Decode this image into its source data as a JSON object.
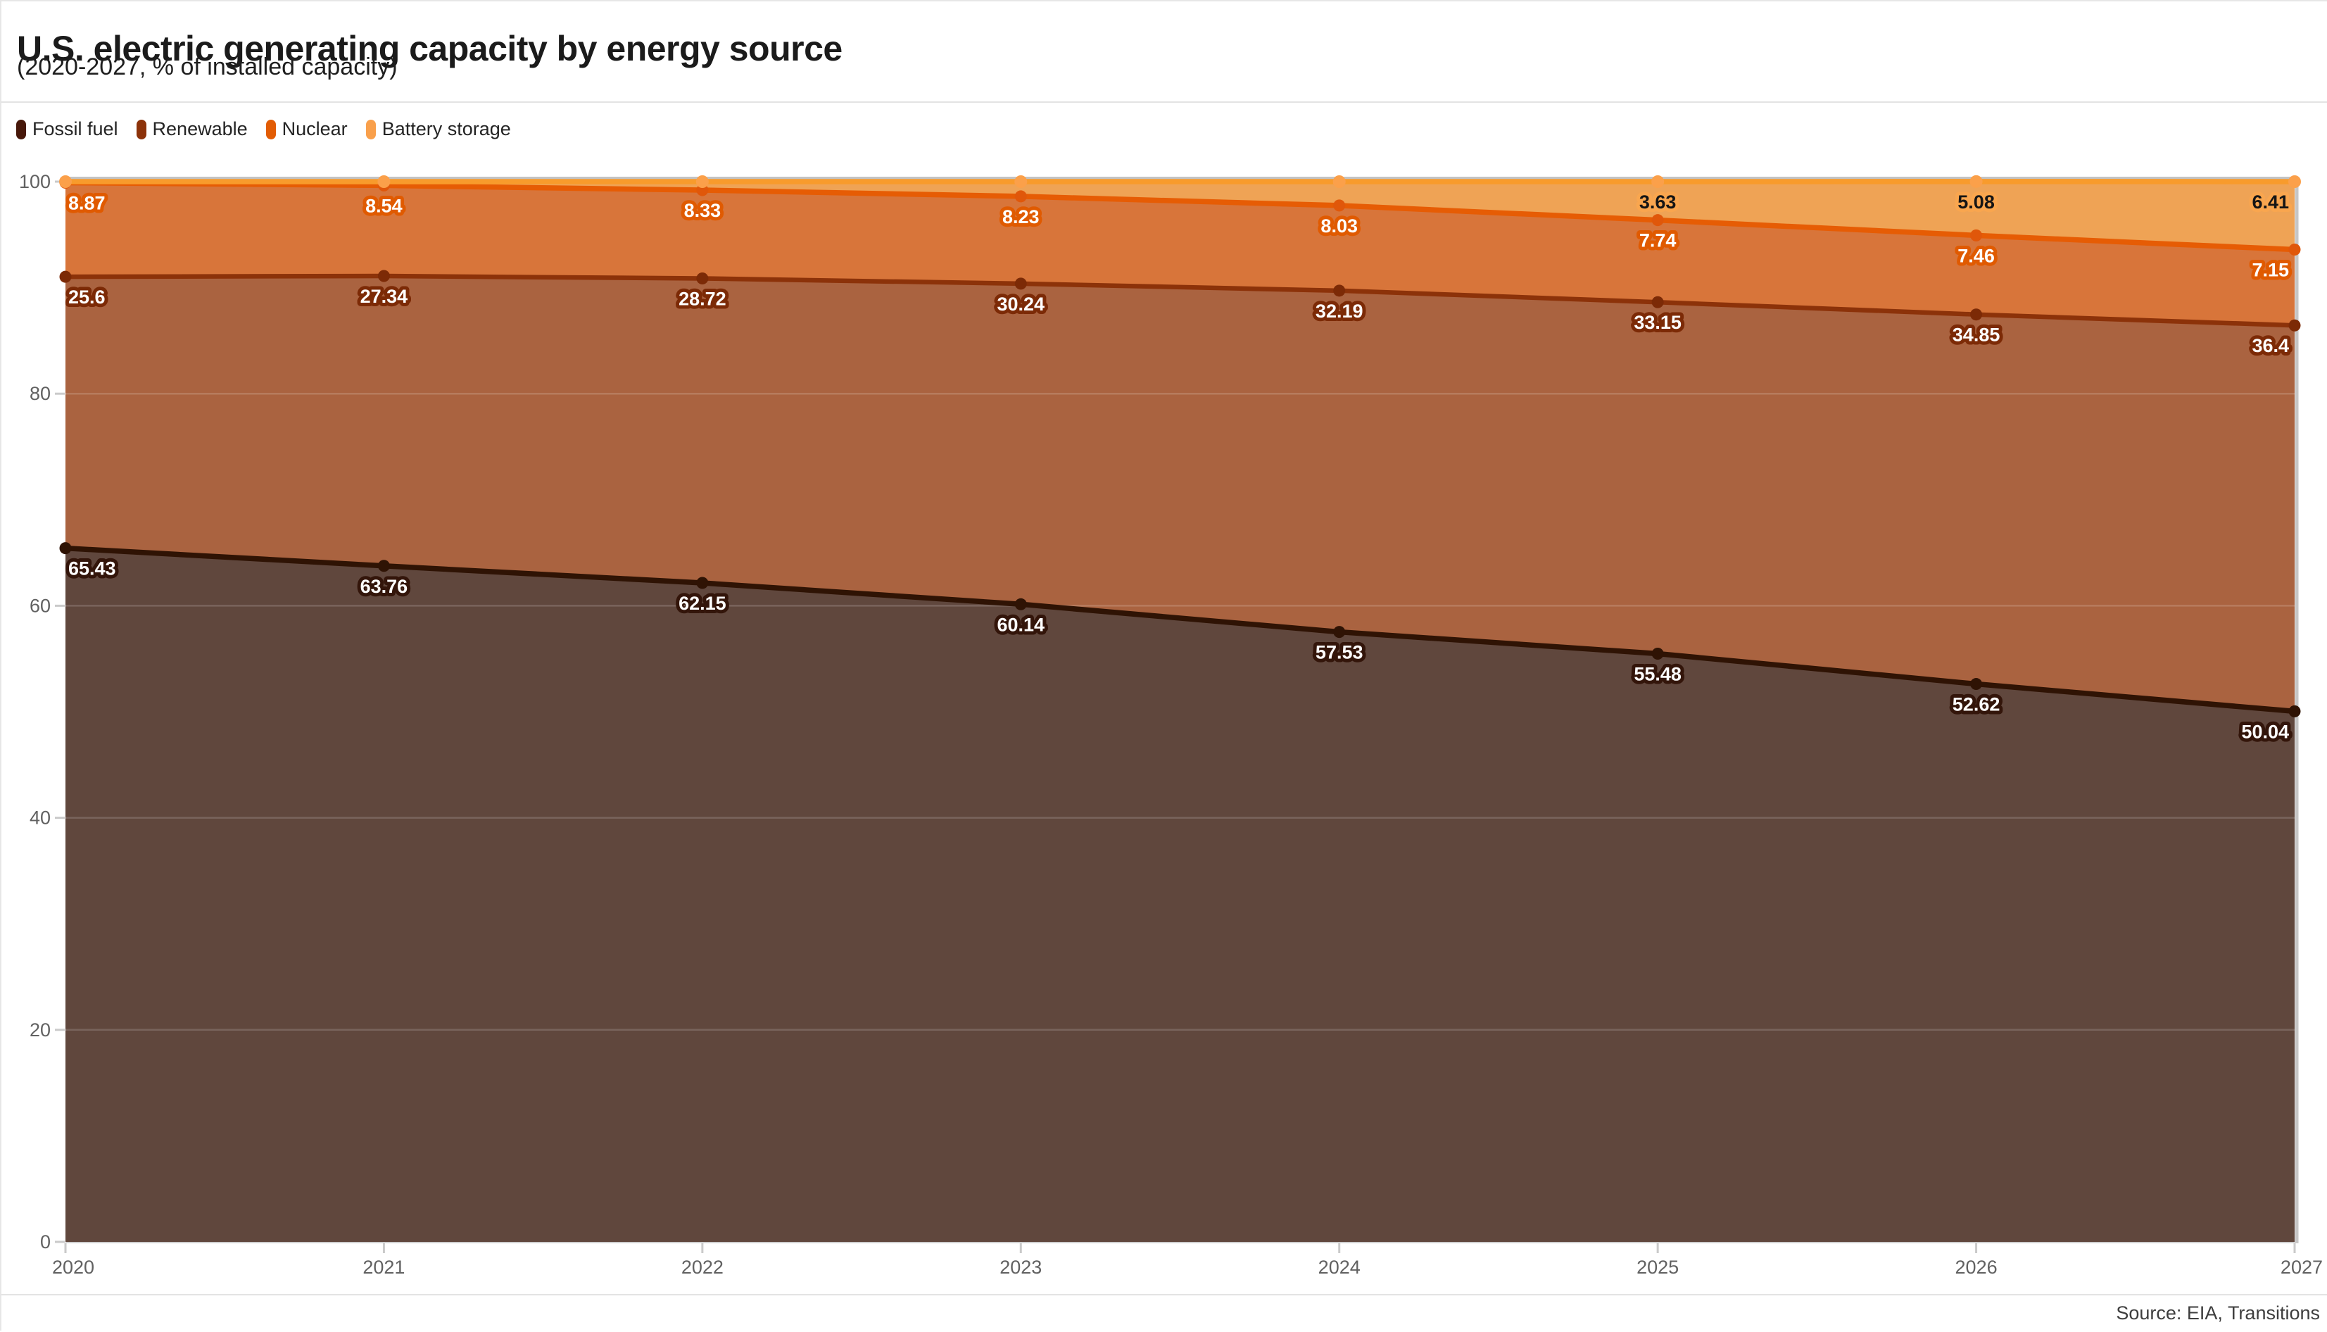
{
  "header": {
    "title": "U.S. electric generating capacity by energy source",
    "subtitle": "(2020-2027, % of installed capacity)"
  },
  "legend": {
    "items": [
      {
        "label": "Fossil fuel",
        "color": "#47180a"
      },
      {
        "label": "Renewable",
        "color": "#8c3209"
      },
      {
        "label": "Nuclear",
        "color": "#e25c04"
      },
      {
        "label": "Battery storage",
        "color": "#f9a04b"
      }
    ]
  },
  "axes": {
    "y_ticks": [
      0,
      20,
      40,
      60,
      80,
      100
    ],
    "x_ticks": [
      "2020",
      "2021",
      "2022",
      "2023",
      "2024",
      "2025",
      "2026",
      "2027"
    ]
  },
  "footer": {
    "source": "Source: EIA, Transitions"
  },
  "chart_data": {
    "type": "area",
    "stacked": true,
    "title": "U.S. electric generating capacity by energy source",
    "subtitle": "(2020-2027, % of installed capacity)",
    "x": [
      2020,
      2021,
      2022,
      2023,
      2024,
      2025,
      2026,
      2027
    ],
    "ylim": [
      0,
      100
    ],
    "yticks": [
      0,
      20,
      40,
      60,
      80,
      100
    ],
    "grid": "horizontal",
    "legend_position": "top-left",
    "series": [
      {
        "name": "Fossil fuel",
        "values": [
          65.43,
          63.76,
          62.15,
          60.14,
          57.53,
          55.48,
          52.62,
          50.04
        ],
        "labels": [
          "65.43",
          "63.76",
          "62.15",
          "60.14",
          "57.53",
          "55.48",
          "52.62",
          "50.04"
        ],
        "line_color": "#2f1304",
        "area_color": "#60473d",
        "marker_color": "#2f1304",
        "label_text_color": "#ffffff",
        "label_halo_color": "#33150a"
      },
      {
        "name": "Renewable",
        "values": [
          25.6,
          27.34,
          28.72,
          30.24,
          32.19,
          33.15,
          34.85,
          36.4
        ],
        "labels": [
          "25.6",
          "27.34",
          "28.72",
          "30.24",
          "32.19",
          "33.15",
          "34.85",
          "36.4"
        ],
        "line_color": "#8c3209",
        "area_color": "#aa6340",
        "marker_color": "#7c2a06",
        "label_text_color": "#ffffff",
        "label_halo_color": "#7c2a06"
      },
      {
        "name": "Nuclear",
        "values": [
          8.87,
          8.54,
          8.33,
          8.23,
          8.03,
          7.74,
          7.46,
          7.15
        ],
        "labels": [
          "8.87",
          "8.54",
          "8.33",
          "8.23",
          "8.03",
          "7.74",
          "7.46",
          "7.15"
        ],
        "line_color": "#e65c04",
        "area_color": "#d8753a",
        "marker_color": "#e0570a",
        "label_text_color": "#ffffff",
        "label_halo_color": "#e05a00"
      },
      {
        "name": "Battery storage",
        "values": [
          0.1,
          0.36,
          0.8,
          1.39,
          2.25,
          3.63,
          5.08,
          6.41
        ],
        "labels": [
          null,
          null,
          null,
          null,
          null,
          "3.63",
          "5.08",
          "6.41"
        ],
        "line_color": "#f89b2c",
        "area_color": "#efa355",
        "marker_color": "#fba04a",
        "label_text_color": "#151515",
        "label_halo_color": "#f9a64f"
      }
    ]
  }
}
